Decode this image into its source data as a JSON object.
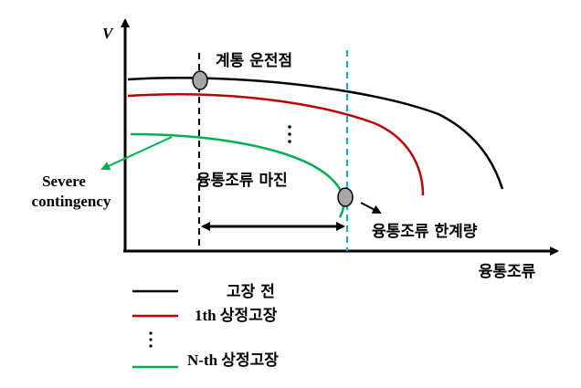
{
  "axis": {
    "y_label": "V",
    "x_label": "융통조류"
  },
  "annotations": {
    "operating_point": "계통 운전점",
    "margin": "융통조류 마진",
    "limit": "융통조류 한계량",
    "severe": [
      "Severe",
      "contingency"
    ]
  },
  "legend": [
    "고장 전",
    "1th 상정고장",
    "N-th 상정고장"
  ]
}
